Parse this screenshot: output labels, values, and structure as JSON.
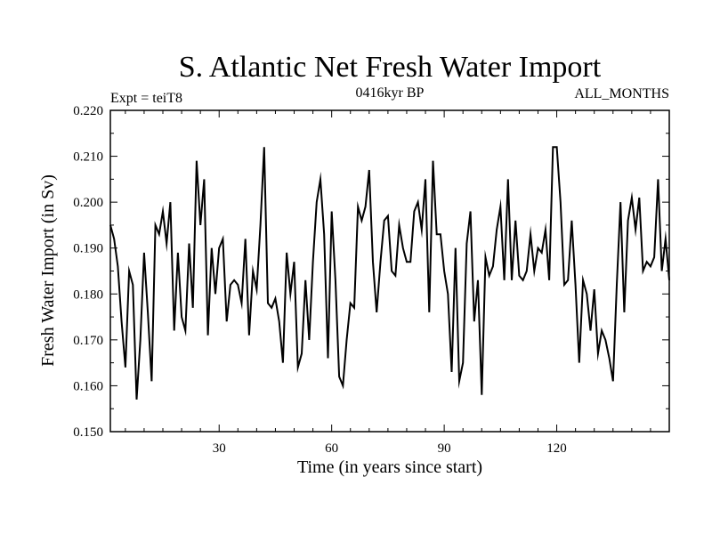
{
  "chart_data": {
    "type": "line",
    "title": "S. Atlantic Net Fresh Water Import",
    "left_label": "Expt = teiT8",
    "center_label": "0416kyr BP",
    "right_label": "ALL_MONTHS",
    "xlabel": "Time (in years since start)",
    "ylabel": "Fresh Water Import (in Sv)",
    "xlim": [
      1,
      150
    ],
    "ylim": [
      0.15,
      0.22
    ],
    "x_ticks": [
      30,
      60,
      90,
      120
    ],
    "y_ticks": [
      0.15,
      0.16,
      0.17,
      0.18,
      0.19,
      0.2,
      0.21,
      0.22
    ],
    "y_tick_labels": [
      "0.150",
      "0.160",
      "0.170",
      "0.180",
      "0.190",
      "0.200",
      "0.210",
      "0.220"
    ],
    "series": [
      {
        "name": "Fresh Water Import",
        "x": [
          1,
          2,
          3,
          4,
          5,
          6,
          7,
          8,
          9,
          10,
          11,
          12,
          13,
          14,
          15,
          16,
          17,
          18,
          19,
          20,
          21,
          22,
          23,
          24,
          25,
          26,
          27,
          28,
          29,
          30,
          31,
          32,
          33,
          34,
          35,
          36,
          37,
          38,
          39,
          40,
          41,
          42,
          43,
          44,
          45,
          46,
          47,
          48,
          49,
          50,
          51,
          52,
          53,
          54,
          55,
          56,
          57,
          58,
          59,
          60,
          61,
          62,
          63,
          64,
          65,
          66,
          67,
          68,
          69,
          70,
          71,
          72,
          73,
          74,
          75,
          76,
          77,
          78,
          79,
          80,
          81,
          82,
          83,
          84,
          85,
          86,
          87,
          88,
          89,
          90,
          91,
          92,
          93,
          94,
          95,
          96,
          97,
          98,
          99,
          100,
          101,
          102,
          103,
          104,
          105,
          106,
          107,
          108,
          109,
          110,
          111,
          112,
          113,
          114,
          115,
          116,
          117,
          118,
          119,
          120,
          121,
          122,
          123,
          124,
          125,
          126,
          127,
          128,
          129,
          130,
          131,
          132,
          133,
          134,
          135,
          136,
          137,
          138,
          139,
          140,
          141,
          142,
          143,
          144,
          145,
          146,
          147,
          148,
          149,
          150
        ],
        "values": [
          0.195,
          0.192,
          0.186,
          0.174,
          0.164,
          0.185,
          0.182,
          0.157,
          0.17,
          0.189,
          0.176,
          0.161,
          0.195,
          0.193,
          0.198,
          0.191,
          0.2,
          0.172,
          0.189,
          0.175,
          0.172,
          0.191,
          0.177,
          0.209,
          0.195,
          0.205,
          0.171,
          0.19,
          0.18,
          0.19,
          0.192,
          0.174,
          0.182,
          0.183,
          0.182,
          0.178,
          0.192,
          0.171,
          0.185,
          0.181,
          0.195,
          0.212,
          0.178,
          0.177,
          0.179,
          0.174,
          0.165,
          0.189,
          0.18,
          0.187,
          0.164,
          0.167,
          0.183,
          0.17,
          0.187,
          0.2,
          0.205,
          0.193,
          0.166,
          0.198,
          0.183,
          0.162,
          0.16,
          0.17,
          0.178,
          0.177,
          0.199,
          0.196,
          0.199,
          0.207,
          0.187,
          0.176,
          0.187,
          0.196,
          0.197,
          0.185,
          0.184,
          0.195,
          0.19,
          0.187,
          0.187,
          0.198,
          0.2,
          0.194,
          0.205,
          0.176,
          0.209,
          0.193,
          0.193,
          0.185,
          0.18,
          0.163,
          0.19,
          0.161,
          0.165,
          0.191,
          0.198,
          0.174,
          0.183,
          0.158,
          0.188,
          0.184,
          0.186,
          0.194,
          0.199,
          0.183,
          0.205,
          0.183,
          0.196,
          0.184,
          0.183,
          0.185,
          0.193,
          0.185,
          0.19,
          0.189,
          0.194,
          0.183,
          0.212,
          0.212,
          0.2,
          0.182,
          0.183,
          0.196,
          0.182,
          0.165,
          0.183,
          0.18,
          0.172,
          0.181,
          0.167,
          0.172,
          0.17,
          0.166,
          0.161,
          0.182,
          0.2,
          0.176,
          0.196,
          0.201,
          0.194,
          0.201,
          0.185,
          0.187,
          0.186,
          0.188,
          0.205,
          0.185,
          0.192,
          0.183
        ]
      }
    ]
  }
}
